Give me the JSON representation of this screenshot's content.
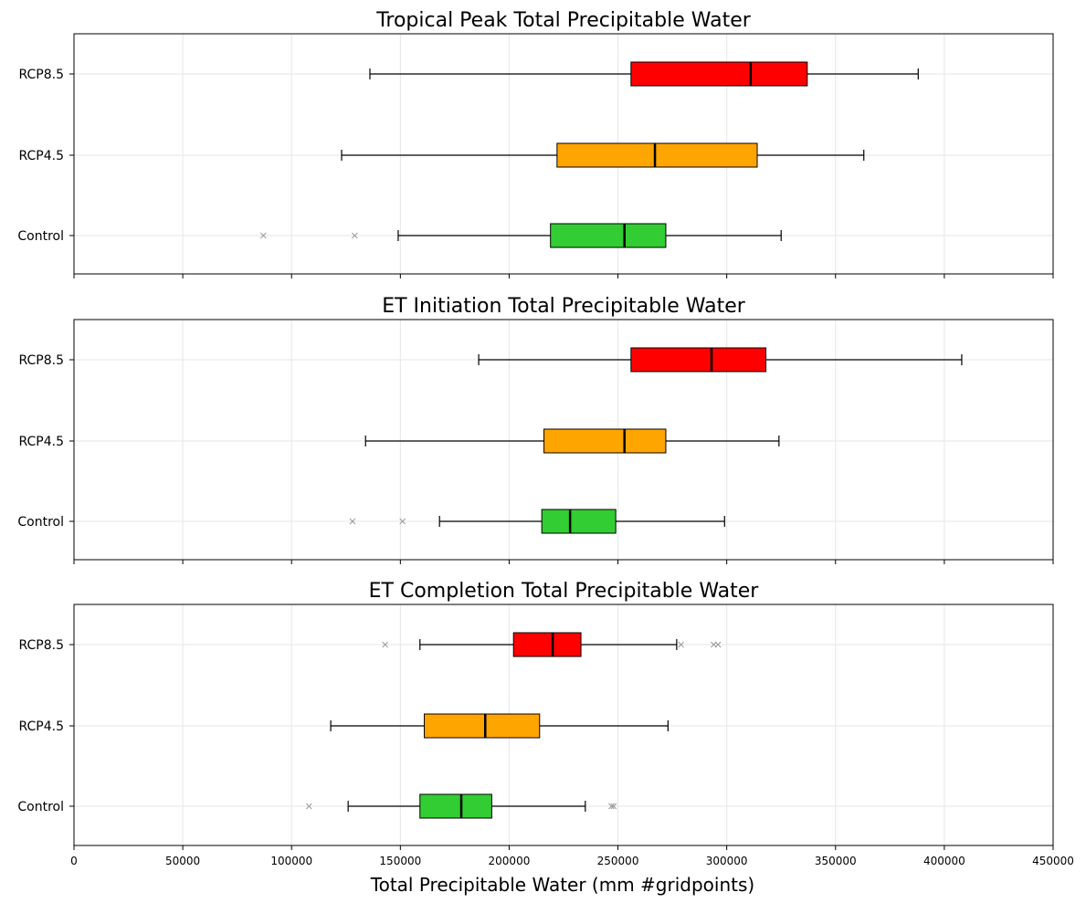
{
  "chart_data": {
    "type": "boxplot-horizontal",
    "xlabel": "Total Precipitable Water (mm #gridpoints)",
    "xlim": [
      0,
      450000
    ],
    "xticks": [
      0,
      50000,
      100000,
      150000,
      200000,
      250000,
      300000,
      350000,
      400000,
      450000
    ],
    "categories": [
      "Control",
      "RCP4.5",
      "RCP8.5"
    ],
    "colors": {
      "Control": "#32cd32",
      "RCP4.5": "#ffa500",
      "RCP8.5": "#ff0000"
    },
    "grid": true,
    "panels": [
      {
        "title": "Tropical Peak Total Precipitable Water",
        "boxes": [
          {
            "category": "Control",
            "whisker_low": 149000,
            "q1": 219000,
            "median": 253000,
            "q3": 272000,
            "whisker_high": 325000,
            "outliers": [
              87000,
              129000
            ]
          },
          {
            "category": "RCP4.5",
            "whisker_low": 123000,
            "q1": 222000,
            "median": 267000,
            "q3": 314000,
            "whisker_high": 363000,
            "outliers": []
          },
          {
            "category": "RCP8.5",
            "whisker_low": 136000,
            "q1": 256000,
            "median": 311000,
            "q3": 337000,
            "whisker_high": 388000,
            "outliers": []
          }
        ]
      },
      {
        "title": "ET Initiation Total Precipitable Water",
        "boxes": [
          {
            "category": "Control",
            "whisker_low": 168000,
            "q1": 215000,
            "median": 228000,
            "q3": 249000,
            "whisker_high": 299000,
            "outliers": [
              128000,
              151000
            ]
          },
          {
            "category": "RCP4.5",
            "whisker_low": 134000,
            "q1": 216000,
            "median": 253000,
            "q3": 272000,
            "whisker_high": 324000,
            "outliers": []
          },
          {
            "category": "RCP8.5",
            "whisker_low": 186000,
            "q1": 256000,
            "median": 293000,
            "q3": 318000,
            "whisker_high": 408000,
            "outliers": []
          }
        ]
      },
      {
        "title": "ET Completion Total Precipitable Water",
        "boxes": [
          {
            "category": "Control",
            "whisker_low": 126000,
            "q1": 159000,
            "median": 178000,
            "q3": 192000,
            "whisker_high": 235000,
            "outliers": [
              108000,
              247000,
              248000
            ]
          },
          {
            "category": "RCP4.5",
            "whisker_low": 118000,
            "q1": 161000,
            "median": 189000,
            "q3": 214000,
            "whisker_high": 273000,
            "outliers": []
          },
          {
            "category": "RCP8.5",
            "whisker_low": 159000,
            "q1": 202000,
            "median": 220000,
            "q3": 233000,
            "whisker_high": 277000,
            "outliers": [
              143000,
              279000,
              294000,
              296000
            ]
          }
        ]
      }
    ]
  }
}
